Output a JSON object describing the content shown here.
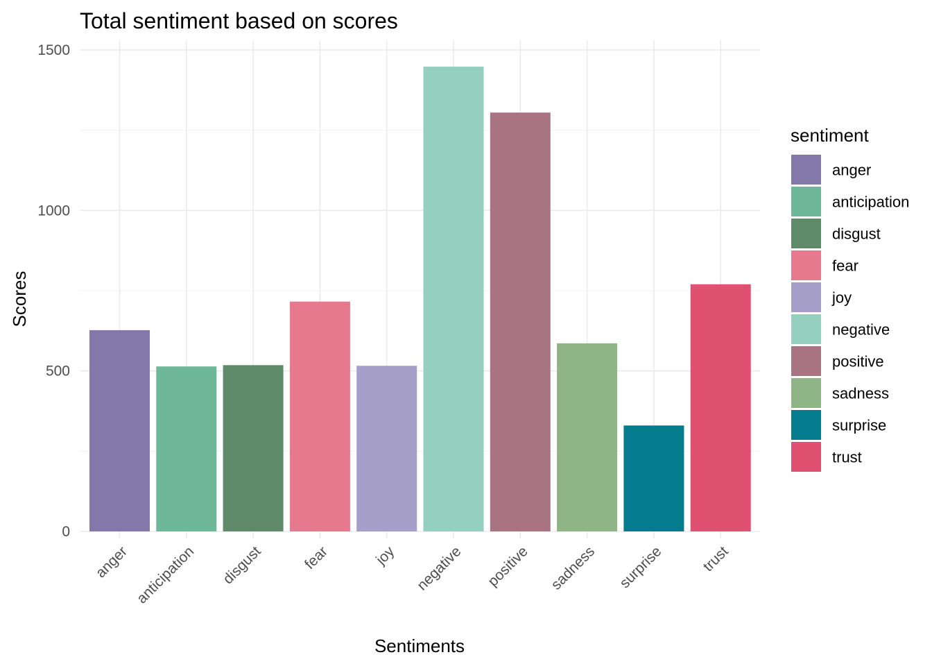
{
  "chart_data": {
    "type": "bar",
    "title": "Total sentiment based on scores",
    "xlabel": "Sentiments",
    "ylabel": "Scores",
    "categories": [
      "anger",
      "anticipation",
      "disgust",
      "fear",
      "joy",
      "negative",
      "positive",
      "sadness",
      "surprise",
      "trust"
    ],
    "values": [
      627,
      514,
      518,
      716,
      516,
      1448,
      1305,
      586,
      330,
      770
    ],
    "colors": [
      "#8477AA",
      "#6EB799",
      "#5E8A69",
      "#E7798E",
      "#A59FC9",
      "#95D0BF",
      "#A97482",
      "#8FB587",
      "#047C8D",
      "#E05070"
    ],
    "ylim": [
      0,
      1500
    ],
    "yticks": [
      0,
      500,
      1000,
      1500
    ],
    "grid": true,
    "legend": {
      "title": "sentiment",
      "position": "right",
      "entries": [
        "anger",
        "anticipation",
        "disgust",
        "fear",
        "joy",
        "negative",
        "positive",
        "sadness",
        "surprise",
        "trust"
      ]
    }
  }
}
